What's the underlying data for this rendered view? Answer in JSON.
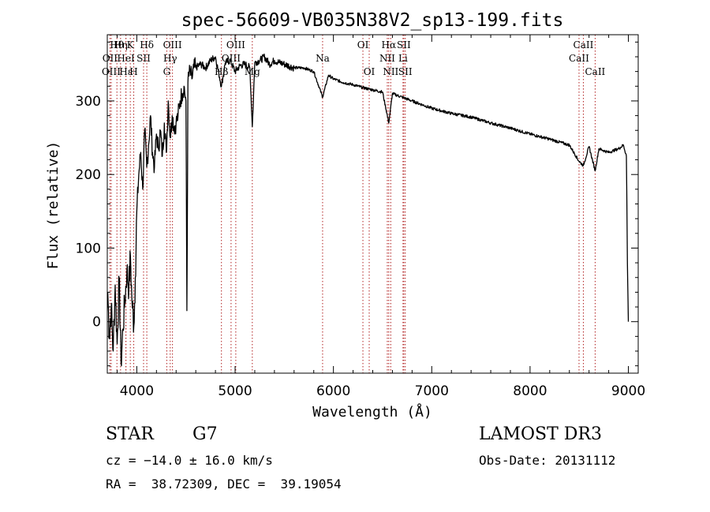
{
  "chart_data": {
    "type": "line",
    "title": "spec-56609-VB035N38V2_sp13-199.fits",
    "xlabel": "Wavelength (Å)",
    "ylabel": "Flux (relative)",
    "xlim": [
      3700,
      9100
    ],
    "ylim": [
      -70,
      390
    ],
    "xticks": [
      4000,
      5000,
      6000,
      7000,
      8000,
      9000
    ],
    "yticks": [
      0,
      100,
      200,
      300
    ],
    "grid": false,
    "legend": "none",
    "line_color": "#000000",
    "marker_color": "#b22222",
    "series": [
      {
        "x": [
          3705,
          3720,
          3740,
          3760,
          3780,
          3800,
          3820,
          3840,
          3860,
          3880,
          3900,
          3920,
          3935,
          3950,
          3970,
          3985,
          4000,
          4020,
          4040,
          4060,
          4080,
          4101,
          4120,
          4140,
          4160,
          4180,
          4200,
          4220,
          4240,
          4260,
          4280,
          4300,
          4320,
          4340,
          4360,
          4380,
          4400,
          4420,
          4440,
          4460,
          4480,
          4500,
          4510,
          4520,
          4540,
          4560,
          4580,
          4600,
          4650,
          4700,
          4750,
          4800,
          4861,
          4900,
          4950,
          5000,
          5050,
          5100,
          5150,
          5175,
          5200,
          5250,
          5300,
          5350,
          5400,
          5450,
          5500,
          5600,
          5700,
          5800,
          5890,
          5950,
          6000,
          6100,
          6200,
          6300,
          6400,
          6500,
          6563,
          6600,
          6700,
          6800,
          6900,
          7000,
          7200,
          7400,
          7600,
          7800,
          8000,
          8200,
          8400,
          8498,
          8542,
          8600,
          8662,
          8700,
          8800,
          8900,
          8950,
          8980,
          8990,
          9000
        ],
        "y": [
          40,
          -20,
          20,
          -40,
          50,
          -30,
          60,
          -55,
          -10,
          30,
          70,
          45,
          90,
          30,
          -5,
          60,
          150,
          200,
          230,
          180,
          260,
          210,
          240,
          280,
          230,
          210,
          255,
          235,
          260,
          225,
          270,
          230,
          300,
          250,
          280,
          265,
          270,
          280,
          300,
          310,
          320,
          300,
          15,
          325,
          340,
          330,
          345,
          345,
          350,
          345,
          355,
          360,
          320,
          352,
          355,
          340,
          348,
          350,
          345,
          265,
          352,
          355,
          360,
          350,
          355,
          352,
          350,
          345,
          345,
          340,
          305,
          335,
          330,
          325,
          322,
          318,
          315,
          312,
          270,
          310,
          305,
          300,
          295,
          290,
          283,
          278,
          270,
          263,
          255,
          248,
          240,
          218,
          212,
          238,
          205,
          235,
          230,
          235,
          240,
          225,
          80,
          0
        ]
      }
    ],
    "line_markers": [
      {
        "label": "Hθ",
        "x": 3798,
        "row": 0
      },
      {
        "label": "OII",
        "x": 3727,
        "row": 1
      },
      {
        "label": "OIII",
        "x": 3740,
        "row": 2
      },
      {
        "label": "Hη",
        "x": 3835,
        "row": 0
      },
      {
        "label": "HeI",
        "x": 3889,
        "row": 1
      },
      {
        "label": "K",
        "x": 3934,
        "row": 0
      },
      {
        "label": "Hε",
        "x": 3890,
        "row": 2
      },
      {
        "label": "H",
        "x": 3969,
        "row": 2
      },
      {
        "label": "SII",
        "x": 4069,
        "row": 1
      },
      {
        "label": "Hδ",
        "x": 4102,
        "row": 0
      },
      {
        "label": "OIII",
        "x": 4363,
        "row": 0
      },
      {
        "label": "Hγ",
        "x": 4340,
        "row": 1
      },
      {
        "label": "G",
        "x": 4305,
        "row": 2
      },
      {
        "label": "Hβ",
        "x": 4861,
        "row": 2
      },
      {
        "label": "OIII",
        "x": 5007,
        "row": 0
      },
      {
        "label": "OIII",
        "x": 4959,
        "row": 1
      },
      {
        "label": "Mg",
        "x": 5175,
        "row": 2
      },
      {
        "label": "Na",
        "x": 5890,
        "row": 1
      },
      {
        "label": "OI",
        "x": 6300,
        "row": 0
      },
      {
        "label": "OI",
        "x": 6364,
        "row": 2
      },
      {
        "label": "Hα",
        "x": 6563,
        "row": 0
      },
      {
        "label": "NII",
        "x": 6548,
        "row": 1
      },
      {
        "label": "NII",
        "x": 6583,
        "row": 2
      },
      {
        "label": "SII",
        "x": 6716,
        "row": 0
      },
      {
        "label": "Li",
        "x": 6708,
        "row": 1
      },
      {
        "label": "SII",
        "x": 6731,
        "row": 2
      },
      {
        "label": "CaII",
        "x": 8542,
        "row": 0
      },
      {
        "label": "CaII",
        "x": 8498,
        "row": 1
      },
      {
        "label": "CaII",
        "x": 8662,
        "row": 2
      }
    ]
  },
  "info": {
    "object_class": "STAR",
    "subclass": "G7",
    "survey": "LAMOST DR3",
    "redshift_text": "cz = −14.0 ± 16.0 km/s",
    "obs_date_text": "Obs-Date: 20131112",
    "coords_text": "RA =  38.72309, DEC =  39.19054"
  }
}
